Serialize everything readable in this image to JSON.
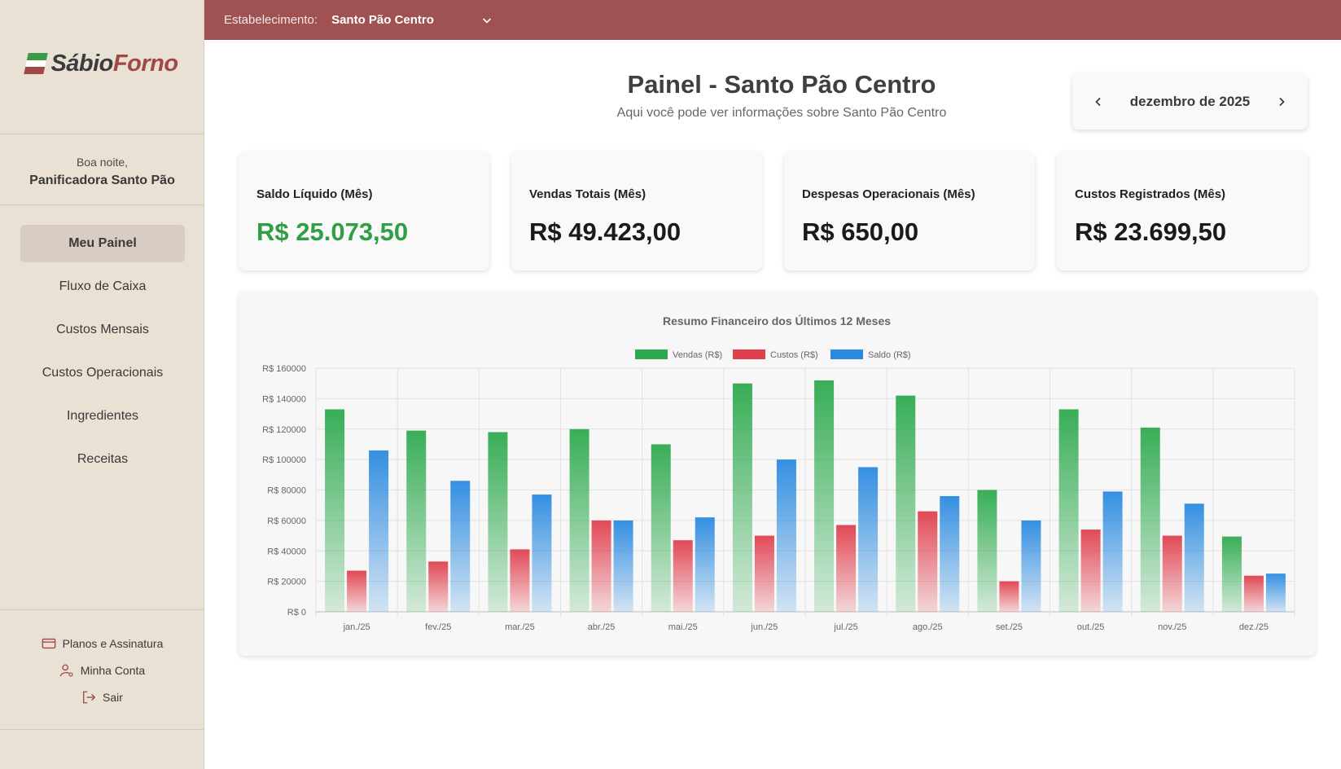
{
  "sidebar": {
    "logo": {
      "part1": "Sábio",
      "part2": "Forno"
    },
    "greeting": "Boa noite,",
    "company": "Panificadora Santo Pão",
    "nav": [
      {
        "label": "Meu Painel",
        "key": "meu-painel",
        "active": true
      },
      {
        "label": "Fluxo de Caixa",
        "key": "fluxo-de-caixa"
      },
      {
        "label": "Custos Mensais",
        "key": "custos-mensais"
      },
      {
        "label": "Custos Operacionais",
        "key": "custos-operacionais"
      },
      {
        "label": "Ingredientes",
        "key": "ingredientes"
      },
      {
        "label": "Receitas",
        "key": "receitas"
      }
    ],
    "bottom": [
      {
        "label": "Planos e Assinatura",
        "icon": "credit-card-icon"
      },
      {
        "label": "Minha Conta",
        "icon": "user-gear-icon"
      },
      {
        "label": "Sair",
        "icon": "logout-icon"
      }
    ]
  },
  "topbar": {
    "label": "Estabelecimento:",
    "selected": "Santo Pão Centro"
  },
  "header": {
    "title": "Painel - Santo Pão Centro",
    "subtitle": "Aqui você pode ver informações sobre Santo Pão Centro"
  },
  "month": {
    "label": "dezembro de 2025"
  },
  "stats": [
    {
      "label": "Saldo Líquido (Mês)",
      "value": "R$ 25.073,50",
      "positive": true
    },
    {
      "label": "Vendas Totais (Mês)",
      "value": "R$ 49.423,00"
    },
    {
      "label": "Despesas Operacionais (Mês)",
      "value": "R$ 650,00"
    },
    {
      "label": "Custos Registrados (Mês)",
      "value": "R$ 23.699,50"
    }
  ],
  "colors": {
    "vendas": "#2eaa4e",
    "custos": "#e0404e",
    "saldo": "#2a8ae0"
  },
  "chart_data": {
    "type": "bar",
    "title": "Resumo Financeiro dos Últimos 12 Meses",
    "categories": [
      "jan./25",
      "fev./25",
      "mar./25",
      "abr./25",
      "mai./25",
      "jun./25",
      "jul./25",
      "ago./25",
      "set./25",
      "out./25",
      "nov./25",
      "dez./25"
    ],
    "series": [
      {
        "name": "Vendas (R$)",
        "values": [
          133000,
          119000,
          118000,
          120000,
          110000,
          150000,
          152000,
          142000,
          80000,
          133000,
          121000,
          49423
        ]
      },
      {
        "name": "Custos (R$)",
        "values": [
          27000,
          33000,
          41000,
          60000,
          47000,
          50000,
          57000,
          66000,
          20000,
          54000,
          50000,
          23699.5
        ]
      },
      {
        "name": "Saldo (R$)",
        "values": [
          106000,
          86000,
          77000,
          60000,
          62000,
          100000,
          95000,
          76000,
          60000,
          79000,
          71000,
          25073.5
        ]
      }
    ],
    "yticks": [
      "R$ 0",
      "R$ 20000",
      "R$ 40000",
      "R$ 60000",
      "R$ 80000",
      "R$ 100000",
      "R$ 120000",
      "R$ 140000",
      "R$ 160000"
    ],
    "ylim": [
      0,
      160000
    ],
    "legend": "top",
    "grid": true
  }
}
